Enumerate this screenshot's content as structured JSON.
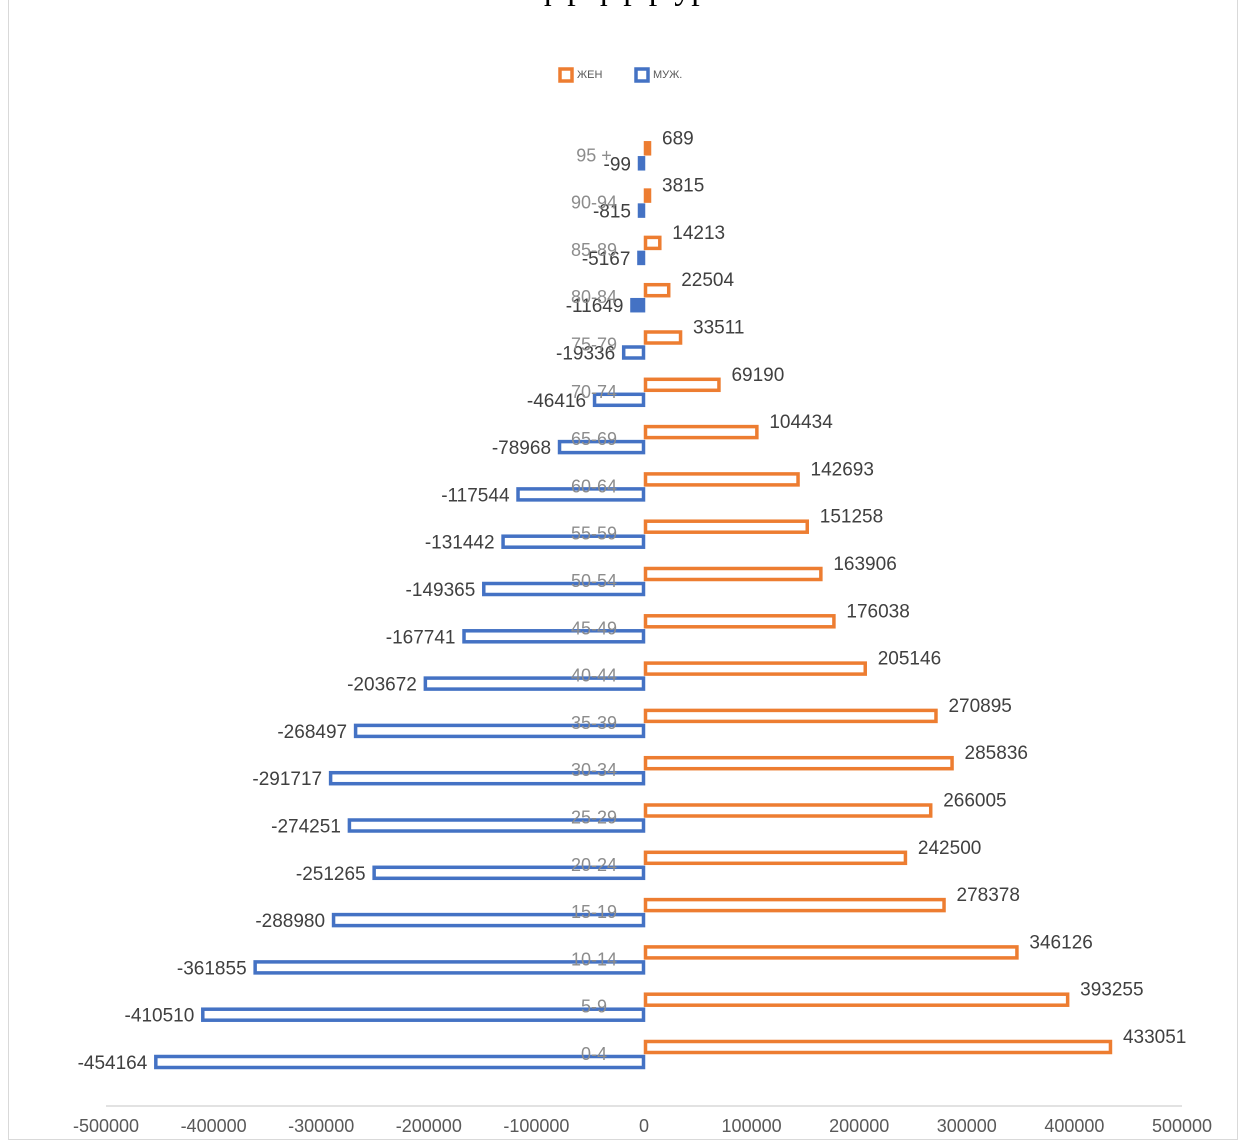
{
  "chart_data": {
    "type": "bar",
    "orientation": "horizontal",
    "title": "",
    "clipped_title_fragment": "ф р ф р р ур",
    "categories": [
      "0-4",
      "5-9",
      "10-14",
      "15-19",
      "20-24",
      "25-29",
      "30-34",
      "35-39",
      "40-44",
      "45-49",
      "50-54",
      "55-59",
      "60-64",
      "65-69",
      "70-74",
      "75-79",
      "80-84",
      "85-89",
      "90-94",
      "95 +"
    ],
    "series": [
      {
        "name": "ЖЕН",
        "color": "#ed7d31",
        "values": [
          433051,
          393255,
          346126,
          278378,
          242500,
          266005,
          285836,
          270895,
          205146,
          176038,
          163906,
          151258,
          142693,
          104434,
          69190,
          33511,
          22504,
          14213,
          3815,
          689
        ]
      },
      {
        "name": "МУЖ.",
        "color": "#4472c4",
        "values": [
          -454164,
          -410510,
          -361855,
          -288980,
          -251265,
          -274251,
          -291717,
          -268497,
          -203672,
          -167741,
          -149365,
          -131442,
          -117544,
          -78968,
          -46416,
          -19336,
          -11649,
          -5167,
          -815,
          -99
        ]
      }
    ],
    "xlim": [
      -500000,
      500000
    ],
    "xticks": [
      "-500000",
      "-400000",
      "-300000",
      "-200000",
      "-100000",
      "0",
      "100000",
      "200000",
      "300000",
      "400000",
      "500000"
    ],
    "legend_position": "top",
    "grid": false
  }
}
